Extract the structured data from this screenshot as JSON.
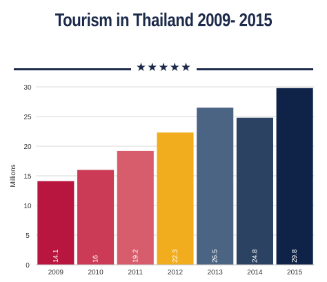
{
  "header": {
    "title": "Tourism in Thailand 2009- 2015",
    "stars": "★★★★★"
  },
  "chart_data": {
    "type": "bar",
    "title": "Tourism in Thailand 2009- 2015",
    "xlabel": "",
    "ylabel": "Millions",
    "ylim": [
      0,
      30
    ],
    "yticks": [
      0,
      5,
      10,
      15,
      20,
      25,
      30
    ],
    "grid": true,
    "categories": [
      "2009",
      "2010",
      "2011",
      "2012",
      "2013",
      "2014",
      "2015"
    ],
    "values": [
      14.1,
      16,
      19.2,
      22.3,
      26.5,
      24.8,
      29.8
    ],
    "data_labels": [
      "14.1",
      "16",
      "19.2",
      "22.3",
      "26.5",
      "24.8",
      "29.8"
    ],
    "colors": [
      "#b8163e",
      "#cc3b56",
      "#d75d6c",
      "#f2ad1f",
      "#4c6483",
      "#2b4263",
      "#0f2348"
    ]
  }
}
